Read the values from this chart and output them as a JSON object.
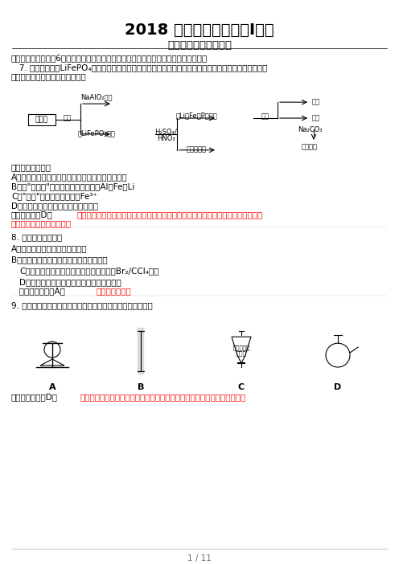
{
  "title": "2018 年全国高考理综（Ⅰ）卷",
  "subtitle": "化学试题部分参考答案",
  "bg_color": "#ffffff",
  "text_color": "#000000",
  "red_color": "#ff0000",
  "page_footer": "1 / 11"
}
